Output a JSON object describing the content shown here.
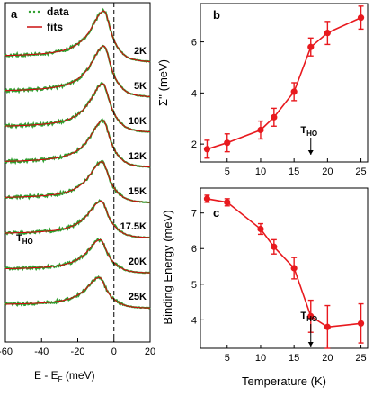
{
  "chart_data": [
    {
      "panel": "a",
      "type": "line",
      "xlabel_main": "E - E",
      "xlabel_sub": "F",
      "xlabel_unit": " (meV)",
      "xlim": [
        -60,
        20
      ],
      "xticks": [
        -60,
        -40,
        -20,
        0,
        20
      ],
      "reference_line_x": 0,
      "legend": [
        "data",
        "fits"
      ],
      "legend_position": "top-left",
      "colors": {
        "data": "#2e9e2e",
        "fits": "#cc1010"
      },
      "curves": [
        {
          "label": "2K",
          "peak_x": -5.5,
          "peak_height": 1.0
        },
        {
          "label": "5K",
          "peak_x": -5.5,
          "peak_height": 1.0
        },
        {
          "label": "10K",
          "peak_x": -6.0,
          "peak_height": 0.95
        },
        {
          "label": "12K",
          "peak_x": -6.0,
          "peak_height": 0.92
        },
        {
          "label": "15K",
          "peak_x": -6.5,
          "peak_height": 0.8
        },
        {
          "label": "17.5K",
          "peak_x": -7.0,
          "peak_height": 0.72
        },
        {
          "label": "20K",
          "peak_x": -7.5,
          "peak_height": 0.65
        },
        {
          "label": "25K",
          "peak_x": -8.0,
          "peak_height": 0.6
        }
      ],
      "annotation": {
        "main": "T",
        "sub": "HO"
      }
    },
    {
      "panel": "b",
      "type": "line",
      "ylabel": "Σ'' (meV)",
      "ylim": [
        1.3,
        7.5
      ],
      "yticks": [
        2,
        4,
        6
      ],
      "xlim": [
        1,
        26
      ],
      "xticks": [
        5,
        10,
        15,
        20,
        25
      ],
      "color": "#e8191e",
      "x": [
        2,
        5,
        10,
        12,
        15,
        17.5,
        20,
        25
      ],
      "y": [
        1.8,
        2.05,
        2.55,
        3.05,
        4.05,
        5.8,
        6.35,
        6.95
      ],
      "yerr": [
        0.35,
        0.35,
        0.35,
        0.35,
        0.35,
        0.35,
        0.45,
        0.45
      ],
      "annotation": {
        "main": "T",
        "sub": "HO",
        "x": 17.5
      }
    },
    {
      "panel": "c",
      "type": "line",
      "ylabel": "Binding Energy (meV)",
      "xlabel": "Temperature (K)",
      "ylim": [
        3.2,
        7.7
      ],
      "yticks": [
        4,
        5,
        6,
        7
      ],
      "xlim": [
        1,
        26
      ],
      "xticks": [
        5,
        10,
        15,
        20,
        25
      ],
      "color": "#e8191e",
      "x": [
        2,
        5,
        10,
        12,
        15,
        17.5,
        20,
        25
      ],
      "y": [
        7.4,
        7.3,
        6.55,
        6.05,
        5.45,
        4.1,
        3.8,
        3.9
      ],
      "yerr": [
        0.1,
        0.1,
        0.15,
        0.2,
        0.3,
        0.45,
        0.6,
        0.55
      ],
      "annotation": {
        "main": "T",
        "sub": "HO",
        "x": 17.5
      }
    }
  ]
}
